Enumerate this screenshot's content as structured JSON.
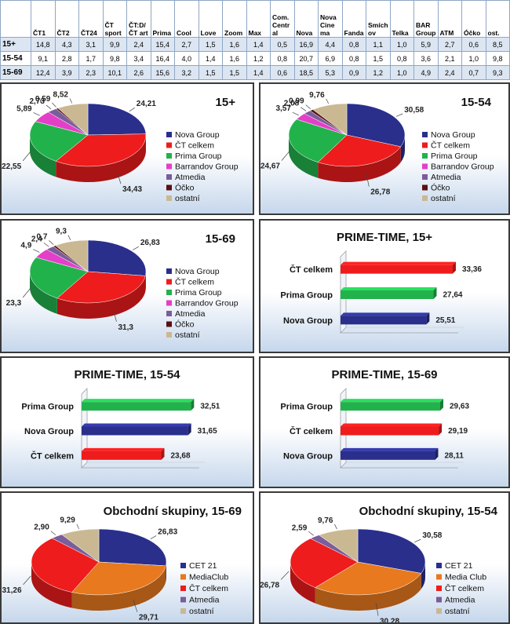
{
  "table": {
    "columns": [
      "",
      "ČT1",
      "ČT2",
      "ČT24",
      "ČT sport",
      "ČT:D/ČT art",
      "Prima",
      "Cool",
      "Love",
      "Zoom",
      "Max",
      "Com. Central",
      "Nova",
      "Nova Cinema",
      "Fanda",
      "Smíchov",
      "Telka",
      "BAR Group",
      "ATM",
      "Óčko",
      "ost."
    ],
    "rows": [
      {
        "group": "15+",
        "values": [
          "14,8",
          "4,3",
          "3,1",
          "9,9",
          "2,4",
          "15,4",
          "2,7",
          "1,5",
          "1,6",
          "1,4",
          "0,5",
          "16,9",
          "4,4",
          "0,8",
          "1,1",
          "1,0",
          "5,9",
          "2,7",
          "0,6",
          "8,5"
        ]
      },
      {
        "group": "15-54",
        "values": [
          "9,1",
          "2,8",
          "1,7",
          "9,8",
          "3,4",
          "16,4",
          "4,0",
          "1,4",
          "1,6",
          "1,2",
          "0,8",
          "20,7",
          "6,9",
          "0,8",
          "1,5",
          "0,8",
          "3,6",
          "2,1",
          "1,0",
          "9,8"
        ]
      },
      {
        "group": "15-69",
        "values": [
          "12,4",
          "3,9",
          "2,3",
          "10,1",
          "2,6",
          "15,6",
          "3,2",
          "1,5",
          "1,5",
          "1,4",
          "0,6",
          "18,5",
          "5,3",
          "0,9",
          "1,2",
          "1,0",
          "4,9",
          "2,4",
          "0,7",
          "9,3"
        ]
      }
    ]
  },
  "colors": {
    "Nova Group": "#2a2f8c",
    "ČT celkem": "#ee1c1c",
    "Prima Group": "#22b24c",
    "Barrandov Group": "#e43fc8",
    "Atmedia": "#7a5d9a",
    "Óčko": "#5a1010",
    "ostatní": "#c9b892",
    "CET 21": "#2a2f8c",
    "MediaClub": "#e8791e",
    "Media Club": "#e8791e"
  },
  "chart_data": [
    {
      "type": "pie",
      "title": "15+",
      "series": [
        {
          "name": "Nova Group",
          "value": 24.21,
          "label": "24,21"
        },
        {
          "name": "ČT celkem",
          "value": 34.43,
          "label": "34,43"
        },
        {
          "name": "Prima Group",
          "value": 22.55,
          "label": "22,55"
        },
        {
          "name": "Barrandov Group",
          "value": 5.89,
          "label": "5,89"
        },
        {
          "name": "Atmedia",
          "value": 2.73,
          "label": "2,73"
        },
        {
          "name": "Óčko",
          "value": 0.59,
          "label": "0,59"
        },
        {
          "name": "ostatní",
          "value": 8.52,
          "label": "8,52"
        }
      ]
    },
    {
      "type": "pie",
      "title": "15-54",
      "series": [
        {
          "name": "Nova Group",
          "value": 30.58,
          "label": "30,58"
        },
        {
          "name": "ČT celkem",
          "value": 26.78,
          "label": "26,78"
        },
        {
          "name": "Prima Group",
          "value": 24.67,
          "label": "24,67"
        },
        {
          "name": "Barrandov Group",
          "value": 3.57,
          "label": "3,57"
        },
        {
          "name": "Atmedia",
          "value": 2.08,
          "label": "2,08"
        },
        {
          "name": "Óčko",
          "value": 0.99,
          "label": "0,99"
        },
        {
          "name": "ostatní",
          "value": 9.76,
          "label": "9,76"
        }
      ]
    },
    {
      "type": "pie",
      "title": "15-69",
      "series": [
        {
          "name": "Nova Group",
          "value": 26.83,
          "label": "26,83"
        },
        {
          "name": "ČT celkem",
          "value": 31.3,
          "label": "31,3"
        },
        {
          "name": "Prima Group",
          "value": 23.3,
          "label": "23,3"
        },
        {
          "name": "Barrandov Group",
          "value": 4.9,
          "label": "4,9"
        },
        {
          "name": "Atmedia",
          "value": 2.4,
          "label": "2,4"
        },
        {
          "name": "Óčko",
          "value": 0.7,
          "label": "0,7"
        },
        {
          "name": "ostatní",
          "value": 9.3,
          "label": "9,3"
        }
      ]
    },
    {
      "type": "bar",
      "title": "PRIME-TIME, 15+",
      "categories": [
        "ČT celkem",
        "Prima Group",
        "Nova Group"
      ],
      "values": [
        33.36,
        27.64,
        25.51
      ],
      "labels": [
        "33,36",
        "27,64",
        "25,51"
      ],
      "xlim": [
        0,
        35
      ]
    },
    {
      "type": "bar",
      "title": "PRIME-TIME, 15-54",
      "categories": [
        "Prima Group",
        "Nova Group",
        "ČT celkem"
      ],
      "values": [
        32.51,
        31.65,
        23.68
      ],
      "labels": [
        "32,51",
        "31,65",
        "23,68"
      ],
      "xlim": [
        0,
        35
      ]
    },
    {
      "type": "bar",
      "title": "PRIME-TIME, 15-69",
      "categories": [
        "Prima Group",
        "ČT celkem",
        "Nova Group"
      ],
      "values": [
        29.63,
        29.19,
        28.11
      ],
      "labels": [
        "29,63",
        "29,19",
        "28,11"
      ],
      "xlim": [
        0,
        35
      ]
    },
    {
      "type": "pie",
      "title": "Obchodní skupiny, 15-69",
      "series": [
        {
          "name": "CET 21",
          "value": 26.83,
          "label": "26,83"
        },
        {
          "name": "MediaClub",
          "value": 29.71,
          "label": "29,71"
        },
        {
          "name": "ČT celkem",
          "value": 31.26,
          "label": "31,26"
        },
        {
          "name": "Atmedia",
          "value": 2.9,
          "label": "2,90"
        },
        {
          "name": "ostatní",
          "value": 9.29,
          "label": "9,29"
        }
      ]
    },
    {
      "type": "pie",
      "title": "Obchodní skupiny, 15-54",
      "series": [
        {
          "name": "CET 21",
          "value": 30.58,
          "label": "30,58"
        },
        {
          "name": "Media Club",
          "value": 30.28,
          "label": "30,28"
        },
        {
          "name": "ČT celkem",
          "value": 26.78,
          "label": "26,78"
        },
        {
          "name": "Atmedia",
          "value": 2.59,
          "label": "2,59"
        },
        {
          "name": "ostatní",
          "value": 9.76,
          "label": "9,76"
        }
      ]
    }
  ]
}
